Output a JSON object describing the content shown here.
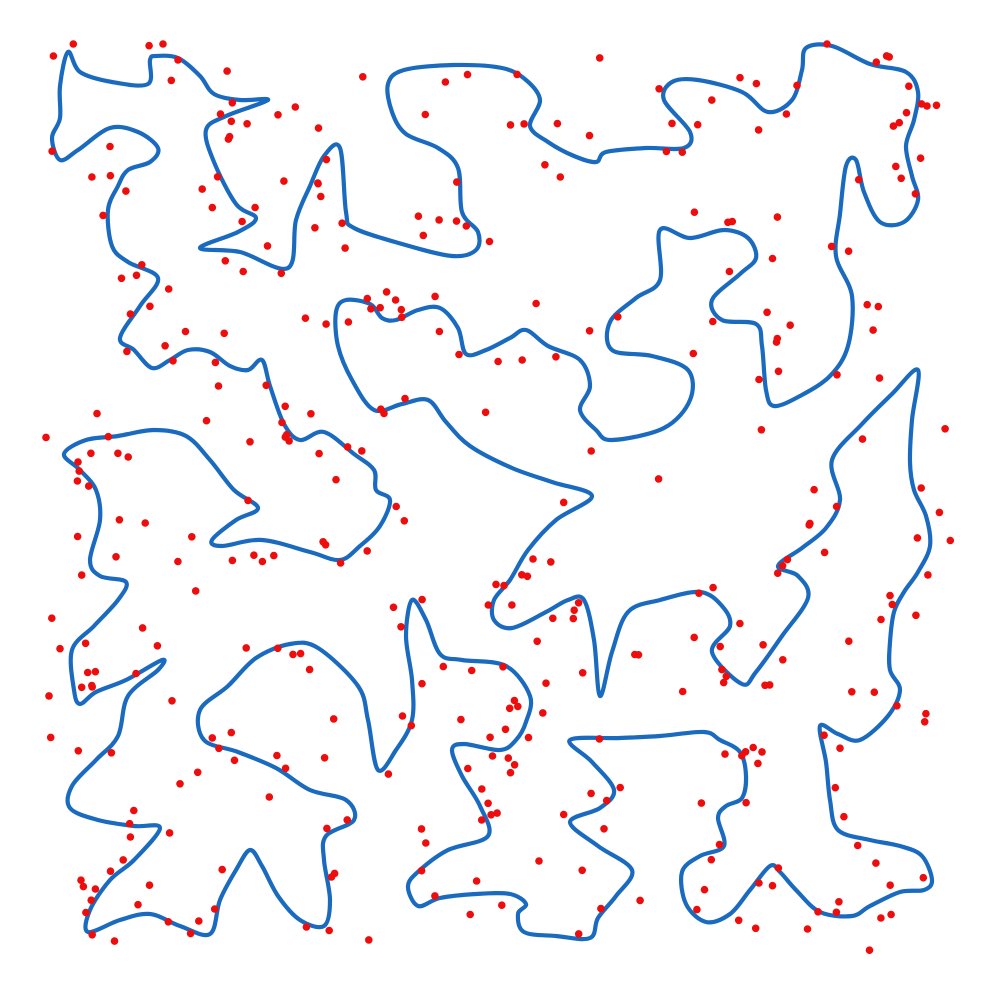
{
  "colors": {
    "background": "#ffffff",
    "path": "#1a6bbf",
    "points": "#ee0d0d"
  },
  "diagram": {
    "description_type": "closed-blob-paths-with-scattered-points",
    "loop_count": 12,
    "point_count": 380
  }
}
